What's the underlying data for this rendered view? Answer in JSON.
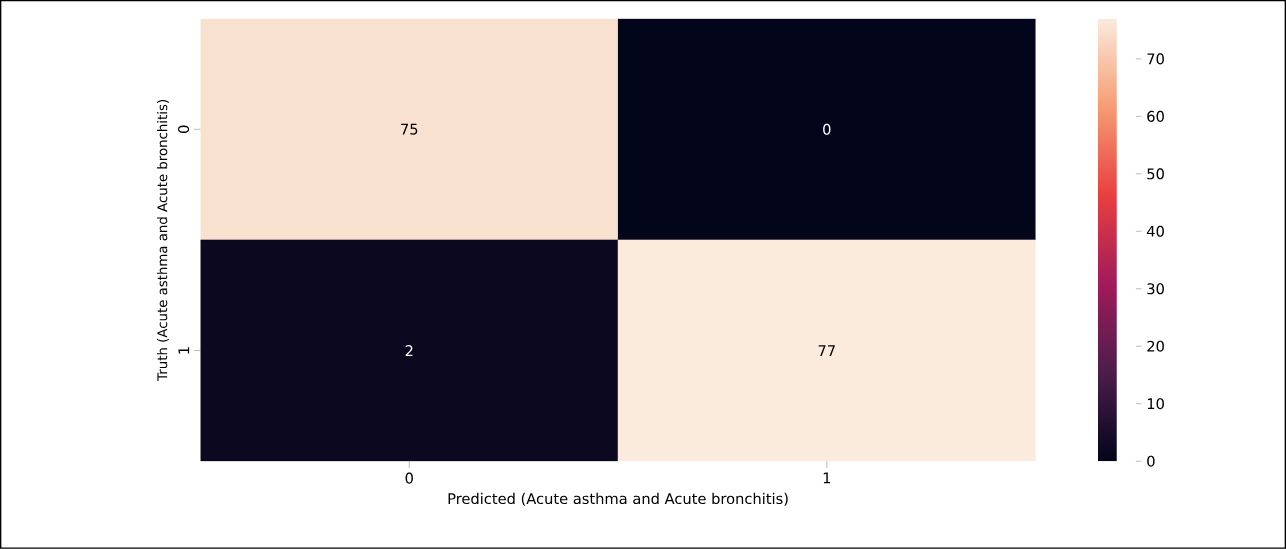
{
  "chart_data": {
    "type": "heatmap",
    "xlabel": "Predicted (Acute asthma and Acute bronchitis)",
    "ylabel": "Truth (Acute asthma and Acute bronchitis)",
    "categories": [
      "0",
      "1"
    ],
    "y_categories": [
      "0",
      "1"
    ],
    "cells": [
      [
        75,
        0
      ],
      [
        2,
        77
      ]
    ],
    "data_labels": true,
    "clim": [
      0,
      77
    ],
    "cticks": [
      0,
      10,
      20,
      30,
      40,
      50,
      60,
      70
    ]
  }
}
